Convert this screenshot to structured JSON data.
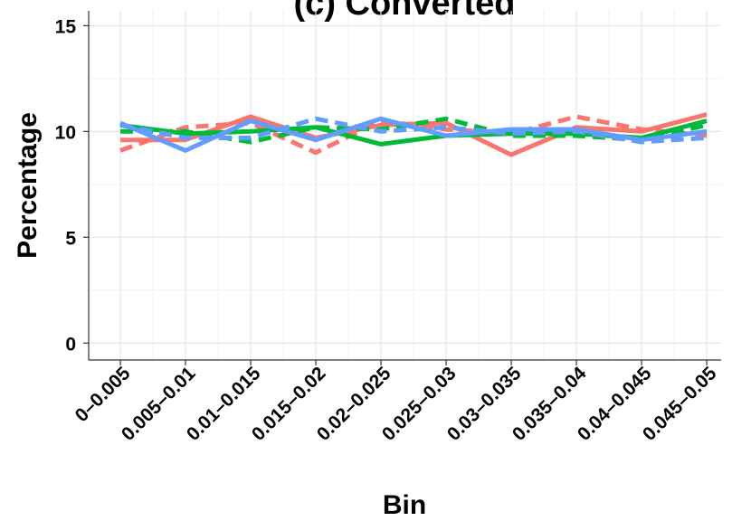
{
  "chart_data": {
    "type": "line",
    "title": "(c) Converted",
    "xlabel": "Bin",
    "ylabel": "Percentage",
    "categories": [
      "0–0.005",
      "0.005–0.01",
      "0.01–0.015",
      "0.015–0.02",
      "0.02–0.025",
      "0.025–0.03",
      "0.03–0.035",
      "0.035–0.04",
      "0.04–0.045",
      "0.045–0.05"
    ],
    "ylim": [
      -0.8,
      15.7
    ],
    "yticks": [
      0,
      5,
      10,
      15
    ],
    "grid": true,
    "series": [
      {
        "color": "#F8766D",
        "dash": "solid",
        "values": [
          9.6,
          9.6,
          10.7,
          9.7,
          10.3,
          10.4,
          8.9,
          10.2,
          10.0,
          10.8
        ]
      },
      {
        "color": "#F8766D",
        "dash": "dashed",
        "values": [
          9.1,
          10.2,
          10.4,
          9.0,
          10.5,
          10.1,
          9.9,
          10.7,
          10.1,
          9.8
        ]
      },
      {
        "color": "#00BA38",
        "dash": "solid",
        "values": [
          10.3,
          9.9,
          10.0,
          10.2,
          9.4,
          9.8,
          9.9,
          9.9,
          9.7,
          10.5
        ]
      },
      {
        "color": "#00BA38",
        "dash": "dashed",
        "values": [
          10.0,
          10.0,
          9.5,
          10.2,
          10.1,
          10.6,
          9.8,
          9.8,
          9.6,
          10.3
        ]
      },
      {
        "color": "#619CFF",
        "solid": true,
        "dash": "solid",
        "values": [
          10.4,
          9.1,
          10.5,
          9.6,
          10.6,
          9.8,
          10.1,
          10.1,
          9.6,
          10.0
        ]
      },
      {
        "color": "#619CFF",
        "dash": "dashed",
        "values": [
          10.3,
          9.7,
          9.7,
          10.6,
          10.0,
          10.2,
          9.9,
          10.0,
          9.5,
          9.7
        ]
      }
    ]
  }
}
